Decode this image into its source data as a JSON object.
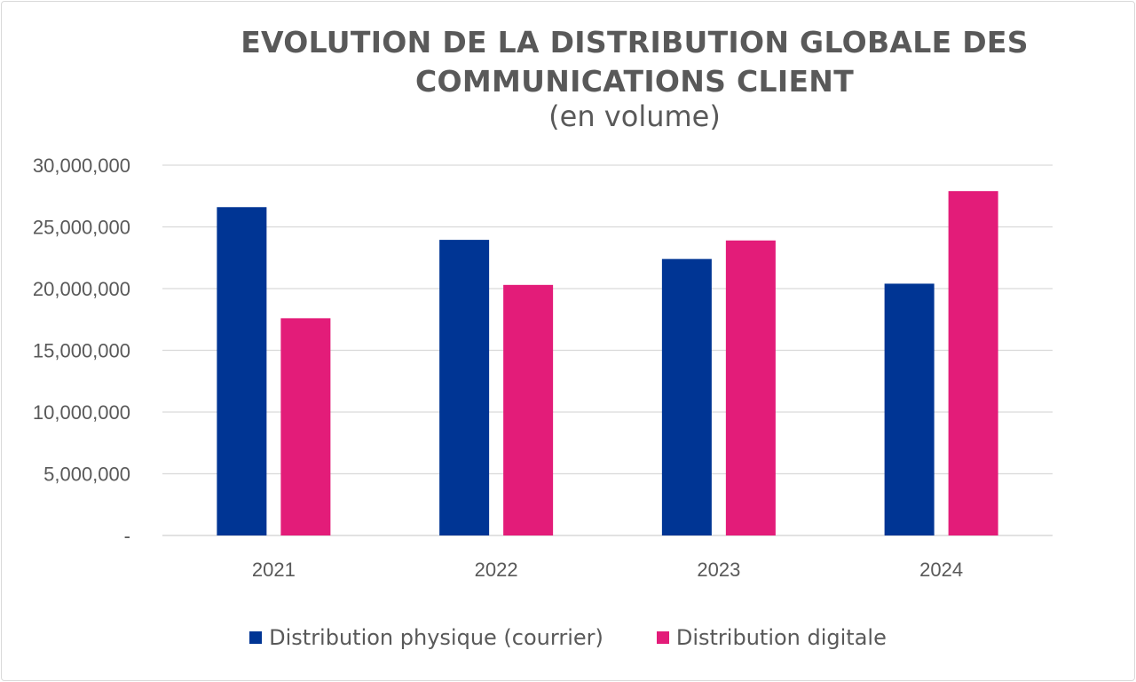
{
  "chart_data": {
    "type": "bar",
    "title": "EVOLUTION DE LA DISTRIBUTION GLOBALE DES COMMUNICATIONS CLIENT",
    "subtitle": "(en volume)",
    "categories": [
      "2021",
      "2022",
      "2023",
      "2024"
    ],
    "series": [
      {
        "name": "Distribution physique (courrier)",
        "color": "#003594",
        "values": [
          26600000,
          23950000,
          22400000,
          20400000
        ]
      },
      {
        "name": "Distribution digitale",
        "color": "#E31C79",
        "values": [
          17600000,
          20300000,
          23900000,
          27900000
        ]
      }
    ],
    "ylim": [
      0,
      30000000
    ],
    "yticks": [
      "-",
      "5,000,000",
      "10,000,000",
      "15,000,000",
      "20,000,000",
      "25,000,000",
      "30,000,000"
    ],
    "grid": true,
    "legend": "bottom"
  }
}
